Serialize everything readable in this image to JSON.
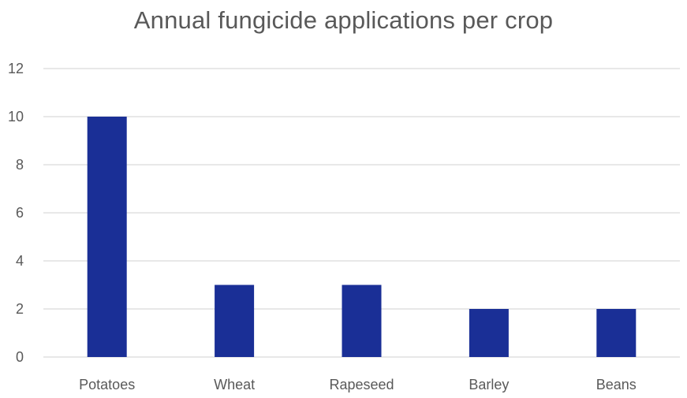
{
  "chart_data": {
    "type": "bar",
    "title": "Annual fungicide applications per crop",
    "categories": [
      "Potatoes",
      "Wheat",
      "Rapeseed",
      "Barley",
      "Beans"
    ],
    "values": [
      10,
      3,
      3,
      2,
      2
    ],
    "xlabel": "",
    "ylabel": "",
    "ylim": [
      0,
      12
    ],
    "yticks": [
      0,
      2,
      4,
      6,
      8,
      10,
      12
    ],
    "grid": true,
    "legend": "none",
    "bar_color": "#1a2f96"
  }
}
